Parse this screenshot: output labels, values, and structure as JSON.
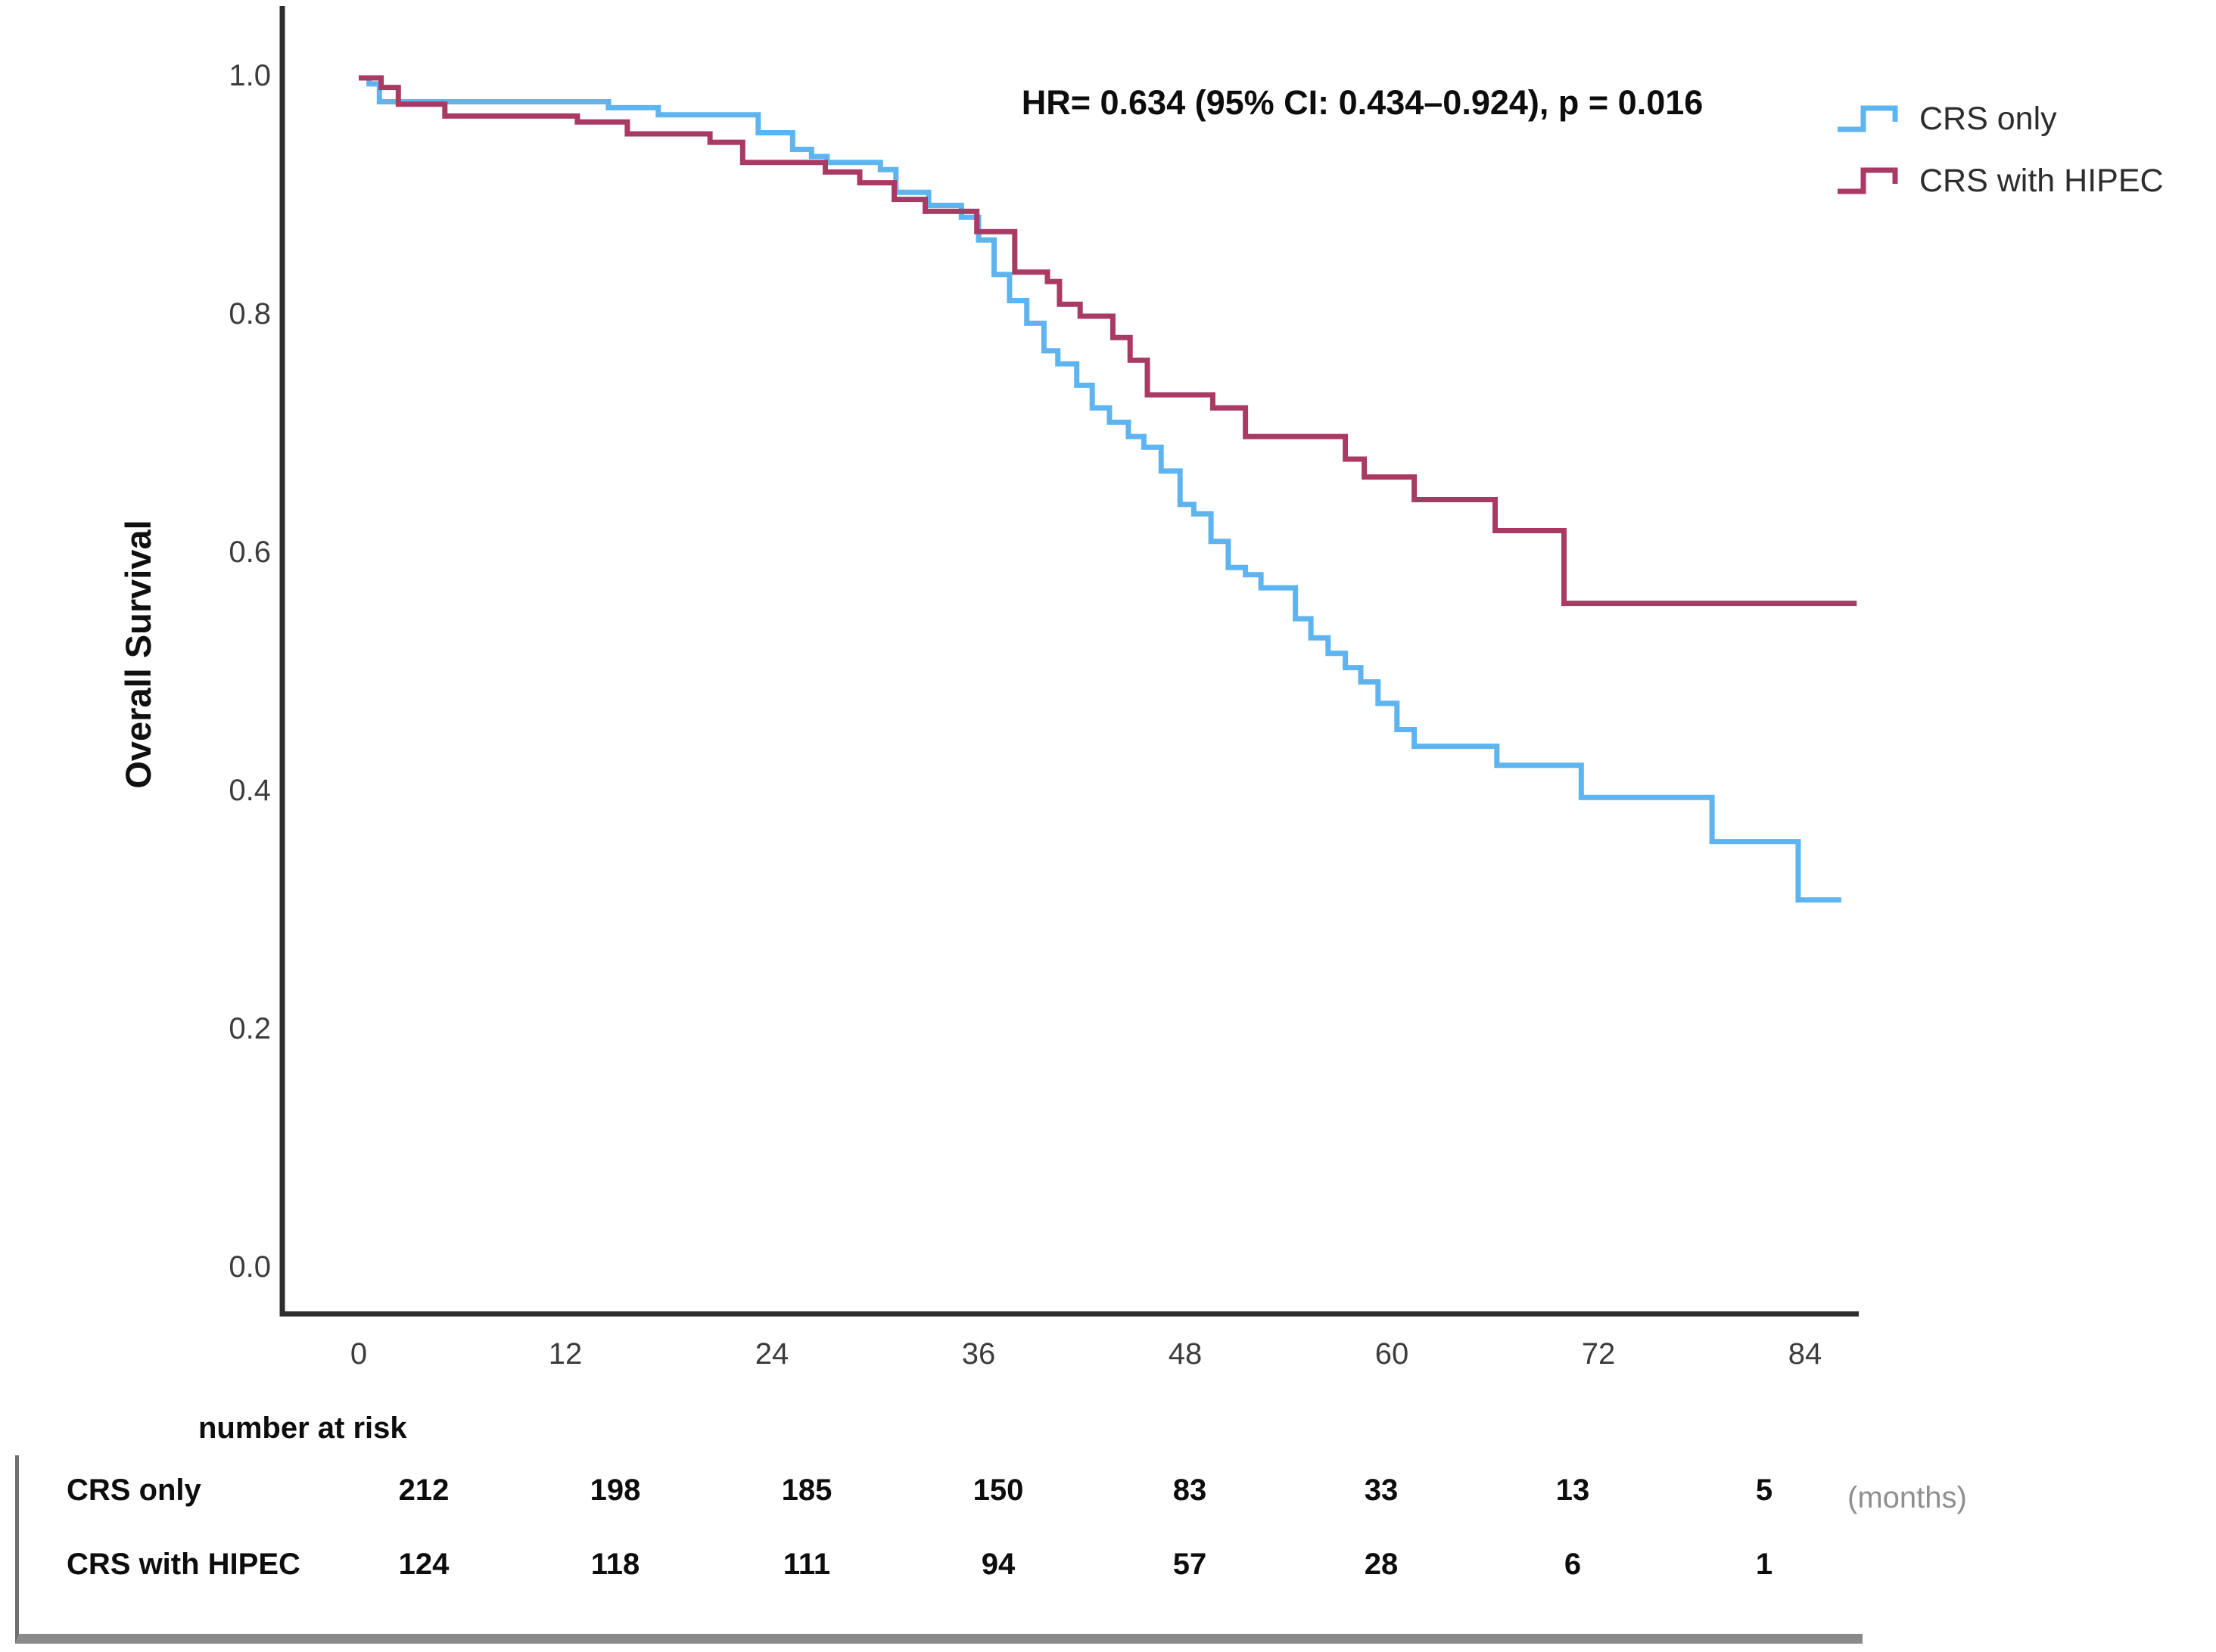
{
  "figure": {
    "annotation": "HR= 0.634 (95% CI: 0.434–0.924), p = 0.016",
    "y_axis_title": "Overall Survival",
    "x_axis_unit": "(months)"
  },
  "legend": [
    {
      "label": "CRS only",
      "color": "#5db4ef"
    },
    {
      "label": "CRS with HIPEC",
      "color": "#a93a64"
    }
  ],
  "chart_data": {
    "type": "line",
    "subtype": "kaplan-meier-step",
    "title": "",
    "xlabel": "(months)",
    "ylabel": "Overall Survival",
    "xlim": [
      0,
      88
    ],
    "ylim": [
      0.0,
      1.0
    ],
    "x_ticks": [
      0,
      12,
      24,
      36,
      48,
      60,
      72,
      84
    ],
    "y_tick_labels": [
      "1.0",
      "0.8",
      "0.6",
      "0.4",
      "0.2",
      "0.0"
    ],
    "grid": false,
    "legend_position": "top-right",
    "annotation": "HR= 0.634 (95% CI: 0.434–0.924), p = 0.016",
    "series": [
      {
        "name": "CRS only",
        "color": "#5db4ef",
        "end_x": 86.1,
        "points": [
          [
            0,
            1.0
          ],
          [
            0.6,
            0.995
          ],
          [
            1.2,
            0.98
          ],
          [
            14.5,
            0.975
          ],
          [
            17.4,
            0.969
          ],
          [
            23.2,
            0.954
          ],
          [
            25.2,
            0.94
          ],
          [
            26.3,
            0.934
          ],
          [
            27.2,
            0.929
          ],
          [
            30.3,
            0.923
          ],
          [
            31.2,
            0.904
          ],
          [
            33.1,
            0.893
          ],
          [
            35.0,
            0.883
          ],
          [
            36.0,
            0.864
          ],
          [
            36.9,
            0.835
          ],
          [
            37.8,
            0.813
          ],
          [
            38.8,
            0.794
          ],
          [
            39.8,
            0.771
          ],
          [
            40.6,
            0.76
          ],
          [
            41.7,
            0.742
          ],
          [
            42.6,
            0.723
          ],
          [
            43.6,
            0.711
          ],
          [
            44.7,
            0.699
          ],
          [
            45.6,
            0.69
          ],
          [
            46.6,
            0.67
          ],
          [
            47.7,
            0.642
          ],
          [
            48.5,
            0.634
          ],
          [
            49.5,
            0.611
          ],
          [
            50.5,
            0.589
          ],
          [
            51.5,
            0.583
          ],
          [
            52.4,
            0.572
          ],
          [
            54.4,
            0.546
          ],
          [
            55.3,
            0.53
          ],
          [
            56.3,
            0.517
          ],
          [
            57.3,
            0.505
          ],
          [
            58.2,
            0.493
          ],
          [
            59.2,
            0.475
          ],
          [
            60.3,
            0.453
          ],
          [
            61.3,
            0.439
          ],
          [
            66.1,
            0.423
          ],
          [
            71.0,
            0.396
          ],
          [
            78.6,
            0.359
          ],
          [
            83.6,
            0.31
          ]
        ]
      },
      {
        "name": "CRS with HIPEC",
        "color": "#a93a64",
        "end_x": 87.0,
        "points": [
          [
            0,
            1.0
          ],
          [
            1.3,
            0.992
          ],
          [
            2.3,
            0.978
          ],
          [
            5.0,
            0.968
          ],
          [
            12.7,
            0.963
          ],
          [
            15.6,
            0.953
          ],
          [
            20.4,
            0.946
          ],
          [
            22.3,
            0.929
          ],
          [
            27.1,
            0.921
          ],
          [
            29.1,
            0.912
          ],
          [
            31.1,
            0.898
          ],
          [
            32.9,
            0.888
          ],
          [
            35.9,
            0.871
          ],
          [
            38.1,
            0.837
          ],
          [
            40.0,
            0.829
          ],
          [
            40.7,
            0.81
          ],
          [
            41.9,
            0.8
          ],
          [
            43.8,
            0.782
          ],
          [
            44.8,
            0.763
          ],
          [
            45.8,
            0.734
          ],
          [
            49.6,
            0.723
          ],
          [
            51.5,
            0.699
          ],
          [
            57.3,
            0.68
          ],
          [
            58.4,
            0.665
          ],
          [
            61.3,
            0.646
          ],
          [
            66.0,
            0.62
          ],
          [
            70.0,
            0.559
          ]
        ]
      }
    ]
  },
  "risk_table": {
    "header": "number at risk",
    "time_points": [
      0,
      12,
      24,
      36,
      48,
      60,
      72,
      84
    ],
    "rows": [
      {
        "label": "CRS only",
        "values": [
          "212",
          "198",
          "185",
          "150",
          "83",
          "33",
          "13",
          "5"
        ]
      },
      {
        "label": "CRS with HIPEC",
        "values": [
          "124",
          "118",
          "111",
          "94",
          "57",
          "28",
          "6",
          "1"
        ]
      }
    ]
  }
}
